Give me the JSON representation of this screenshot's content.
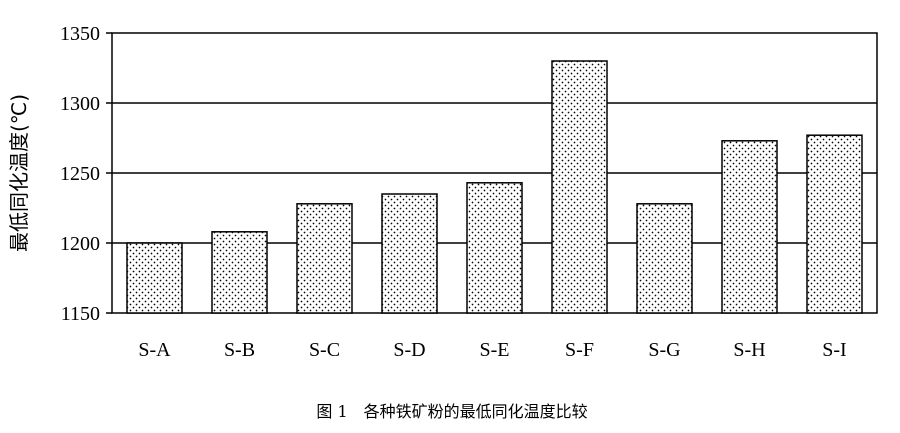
{
  "chart_data": {
    "type": "bar",
    "categories": [
      "S-A",
      "S-B",
      "S-C",
      "S-D",
      "S-E",
      "S-F",
      "S-G",
      "S-H",
      "S-I"
    ],
    "values": [
      1200,
      1208,
      1228,
      1235,
      1243,
      1330,
      1228,
      1273,
      1277
    ],
    "ylabel": "最低同化温度(℃)",
    "xlabel": "",
    "ylim": [
      1150,
      1350
    ],
    "yticks": [
      1150,
      1200,
      1250,
      1300,
      1350
    ],
    "grid": true,
    "bar_fill": "dotted",
    "caption": "图 1　各种铁矿粉的最低同化温度比较"
  },
  "colors": {
    "ink": "#000000",
    "background": "#ffffff"
  }
}
